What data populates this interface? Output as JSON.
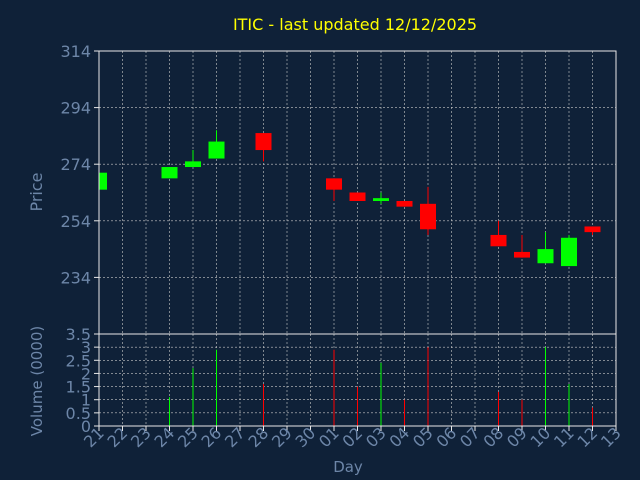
{
  "chart_data": {
    "type": "candlestick",
    "title": "ITIC - last updated 12/12/2025",
    "xlabel": "Day",
    "ylabel_price": "Price",
    "ylabel_volume": "Volume (0000)",
    "price_ylim": [
      214,
      314
    ],
    "price_ticks": [
      "314",
      "294",
      "274",
      "254",
      "234"
    ],
    "price_tick_values": [
      314,
      294,
      274,
      254,
      234
    ],
    "volume_ylim": [
      0,
      3.5
    ],
    "volume_ticks": [
      "3.5",
      "3",
      "2.5",
      "2",
      "1.5",
      "1",
      "0.5",
      "0"
    ],
    "volume_tick_values": [
      3.5,
      3,
      2.5,
      2,
      1.5,
      1,
      0.5,
      0
    ],
    "x_tick_labels": [
      "21",
      "22",
      "23",
      "24",
      "25",
      "26",
      "27",
      "28",
      "29",
      "30",
      "01",
      "02",
      "03",
      "04",
      "05",
      "06",
      "07",
      "08",
      "09",
      "10",
      "11",
      "12",
      "13"
    ],
    "grid": true,
    "colors": {
      "background": "#0f2138",
      "grid": "#c8c8c8",
      "axis": "#e8e8e8",
      "title": "#ffff00",
      "label": "#6d86a8",
      "up": "#00ff00",
      "down": "#ff0000"
    },
    "candles": [
      {
        "x": 0,
        "open": 265,
        "high": 271,
        "low": 265,
        "close": 271,
        "volume": 0
      },
      {
        "x": 3,
        "open": 269,
        "high": 273,
        "low": 269,
        "close": 273,
        "volume": 1.1
      },
      {
        "x": 4,
        "open": 273,
        "high": 279,
        "low": 273,
        "close": 275,
        "volume": 2.2
      },
      {
        "x": 5,
        "open": 276,
        "high": 286,
        "low": 276,
        "close": 282,
        "volume": 2.9
      },
      {
        "x": 7,
        "open": 285,
        "high": 285,
        "low": 275,
        "close": 279,
        "volume": 1.6
      },
      {
        "x": 10,
        "open": 269,
        "high": 269,
        "low": 261,
        "close": 265,
        "volume": 2.9
      },
      {
        "x": 11,
        "open": 264,
        "high": 264,
        "low": 261,
        "close": 261,
        "volume": 1.5
      },
      {
        "x": 12,
        "open": 261,
        "high": 264,
        "low": 260,
        "close": 262,
        "volume": 2.4
      },
      {
        "x": 13,
        "open": 261,
        "high": 261,
        "low": 259,
        "close": 259,
        "volume": 1.0
      },
      {
        "x": 14,
        "open": 260,
        "high": 266,
        "low": 249,
        "close": 251,
        "volume": 3.0
      },
      {
        "x": 17,
        "open": 249,
        "high": 254,
        "low": 245,
        "close": 245,
        "volume": 1.3
      },
      {
        "x": 18,
        "open": 243,
        "high": 249,
        "low": 241,
        "close": 241,
        "volume": 1.0
      },
      {
        "x": 19,
        "open": 239,
        "high": 250,
        "low": 239,
        "close": 244,
        "volume": 3.0
      },
      {
        "x": 20,
        "open": 238,
        "high": 249,
        "low": 238,
        "close": 248,
        "volume": 1.6
      },
      {
        "x": 21,
        "open": 252,
        "high": 252,
        "low": 249,
        "close": 250,
        "volume": 0.7
      }
    ]
  }
}
